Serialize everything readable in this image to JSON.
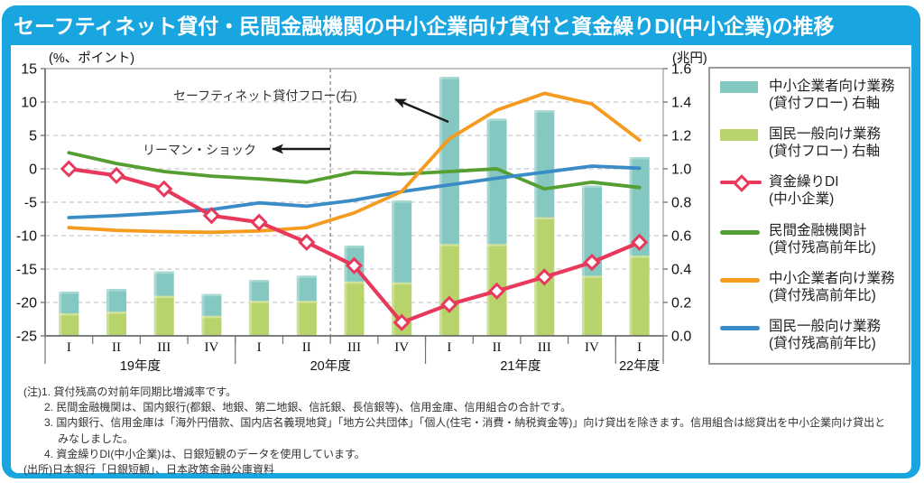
{
  "title": "セーフティネット貸付・民間金融機関の中小企業向け貸付と資金繰りDI(中小企業)の推移",
  "colors": {
    "frame_blue": "#19a6e0",
    "bar_teal": "#84c8c1",
    "bar_teal_light": "#a6d8d2",
    "bar_green": "#b7d36c",
    "bar_green_light": "#cfe29a",
    "di_red": "#e8395c",
    "minkan_green": "#559e31",
    "chusho_orange": "#f49b20",
    "kokumin_blue": "#3a8cc7",
    "grid_gray": "#c9c9c9",
    "axis_gray": "#707070"
  },
  "chart_data": {
    "type": "bar+line combo (stacked bars on right axis, lines on left axis)",
    "categories": [
      "I",
      "II",
      "III",
      "IV",
      "I",
      "II",
      "III",
      "IV",
      "I",
      "II",
      "III",
      "IV",
      "I"
    ],
    "year_groups": [
      {
        "label": "19年度",
        "span": 4
      },
      {
        "label": "20年度",
        "span": 4
      },
      {
        "label": "21年度",
        "span": 4
      },
      {
        "label": "22年度",
        "span": 1
      }
    ],
    "left_axis": {
      "title": "(%、ポイント)",
      "min": -25,
      "max": 15,
      "ticks": [
        15,
        10,
        5,
        0,
        -5,
        -10,
        -15,
        -20,
        -25
      ]
    },
    "right_axis": {
      "title": "(兆円)",
      "min": 0,
      "max": 1.6,
      "ticks": [
        1.6,
        1.4,
        1.2,
        1.0,
        0.8,
        0.6,
        0.4,
        0.2,
        0.0
      ]
    },
    "grid": "dashed horizontal every 5 points / 0.2 trillion yen",
    "bar_series": [
      {
        "key": "kokumin-flow",
        "name": "国民一般向け業務(貸付フロー)右軸",
        "color": "bar_green",
        "highlight": "bar_green_light",
        "axis": "right",
        "values": [
          0.135,
          0.145,
          0.24,
          0.12,
          0.21,
          0.21,
          0.325,
          0.32,
          0.55,
          0.55,
          0.71,
          0.36,
          0.48
        ]
      },
      {
        "key": "chusho-flow",
        "name": "中小企業者向け業務(貸付フロー)右軸",
        "color": "bar_teal",
        "highlight": "bar_teal_light",
        "axis": "right",
        "values": [
          0.13,
          0.135,
          0.145,
          0.13,
          0.125,
          0.15,
          0.215,
          0.49,
          1.0,
          0.75,
          0.64,
          0.54,
          0.59
        ]
      }
    ],
    "line_series": [
      {
        "key": "di",
        "name": "資金繰りDI(中小企業)",
        "color": "di_red",
        "axis": "left",
        "marker": "diamond",
        "z": 4,
        "values": [
          0,
          -1,
          -3,
          -7,
          -8,
          -11,
          -14.5,
          -23,
          -20.3,
          -18.3,
          -16.2,
          -14,
          -11
        ]
      },
      {
        "key": "minkan",
        "name": "民間金融機関計(貸付残高前年比)",
        "color": "minkan_green",
        "axis": "left",
        "marker": "none",
        "z": 1,
        "values": [
          2.4,
          0.8,
          -0.4,
          -1.1,
          -1.5,
          -2.0,
          -0.5,
          -0.8,
          -0.4,
          0,
          -3.0,
          -2.0,
          -2.8
        ]
      },
      {
        "key": "chusho-zandaka",
        "name": "中小企業者向け業務(貸付残高前年比)",
        "color": "chusho_orange",
        "axis": "left",
        "marker": "none",
        "z": 3,
        "values": [
          -8.8,
          -9.2,
          -9.4,
          -9.5,
          -9.3,
          -8.8,
          -6.6,
          -3.4,
          4.5,
          8.8,
          11.3,
          9.7,
          4.3
        ]
      },
      {
        "key": "kokumin-zandaka",
        "name": "国民一般向け業務(貸付残高前年比)",
        "color": "kokumin_blue",
        "axis": "left",
        "marker": "none",
        "z": 2,
        "values": [
          -7.3,
          -7.0,
          -6.6,
          -6.1,
          -5.1,
          -5.6,
          -4.7,
          -3.4,
          -2.4,
          -1.4,
          -0.5,
          0.4,
          0.1
        ]
      }
    ],
    "event_line": {
      "label": "リーマン・ショック",
      "boundary_index": 6,
      "note": "dashed vertical line between 20年度II and 20年度III"
    },
    "annotations": [
      {
        "id": "safetynet-flow",
        "text": "セーフティネット貸付フロー(右)"
      },
      {
        "id": "lehman-shock",
        "text": "リーマン・ショック"
      }
    ]
  },
  "legend": {
    "items": [
      {
        "key": "chusho-flow",
        "swatch": "bar",
        "color": "bar_teal",
        "label1": "中小企業者向け業務",
        "label2": "(貸付フロー) 右軸"
      },
      {
        "key": "kokumin-flow",
        "swatch": "bar",
        "color": "bar_green",
        "label1": "国民一般向け業務",
        "label2": "(貸付フロー) 右軸"
      },
      {
        "key": "di",
        "swatch": "diamond-line",
        "color": "di_red",
        "label1": "資金繰りDI",
        "label2": "(中小企業)"
      },
      {
        "key": "minkan",
        "swatch": "line",
        "color": "minkan_green",
        "label1": "民間金融機関計",
        "label2": "(貸付残高前年比)"
      },
      {
        "key": "chusho-zandaka",
        "swatch": "line",
        "color": "chusho_orange",
        "label1": "中小企業者向け業務",
        "label2": "(貸付残高前年比)"
      },
      {
        "key": "kokumin-zandaka",
        "swatch": "line",
        "color": "kokumin_blue",
        "label1": "国民一般向け業務",
        "label2": "(貸付残高前年比)"
      }
    ]
  },
  "notes": [
    {
      "indent": 0,
      "text": "(注)1. 貸付残高の対前年同期比増減率です。"
    },
    {
      "indent": 1,
      "text": "2. 民間金融機関は、国内銀行(都銀、地銀、第二地銀、信託銀、長信銀等)、信用金庫、信用組合の合計です。"
    },
    {
      "indent": 1,
      "text": "3. 国内銀行、信用金庫は「海外円借款、国内店名義現地貸」「地方公共団体」「個人(住宅・消費・納税資金等)」向け貸出を除きます。信用組合は総貸出を中小企業向け貸出と"
    },
    {
      "indent": 2,
      "text": "みなしました。"
    },
    {
      "indent": 1,
      "text": "4. 資金繰りDI(中小企業)は、日銀短観のデータを使用しています。"
    },
    {
      "indent": 0,
      "text": "(出所)日本銀行「日銀短観」、日本政策金融公庫資料"
    }
  ]
}
